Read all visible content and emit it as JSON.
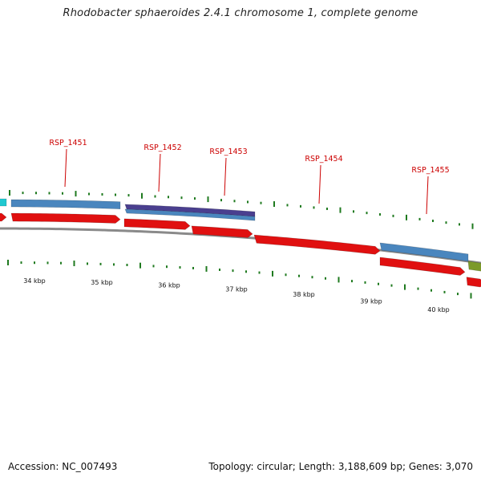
{
  "title": "Rhodobacter sphaeroides 2.4.1 chromosome 1, complete genome",
  "footer": {
    "accession": "Accession: NC_007493",
    "summary": "Topology: circular; Length: 3,188,609 bp; Genes: 3,070"
  },
  "colors": {
    "backbone": "#8a8a8a",
    "forward_strand_gene": "#e01010",
    "cds_blue": "#4a86be",
    "cds_purple": "#4a3f8f",
    "cds_cyan": "#20c8d0",
    "cds_olive": "#7c9a2a",
    "tick": "#1f7a1f",
    "label": "#cc0000"
  },
  "scale_labels": [
    "34 kbp",
    "35 kbp",
    "36 kbp",
    "37 kbp",
    "38 kbp",
    "39 kbp",
    "40 kbp"
  ],
  "gene_labels": [
    "RSP_1451",
    "RSP_1452",
    "RSP_1453",
    "RSP_1454",
    "RSP_1455"
  ]
}
